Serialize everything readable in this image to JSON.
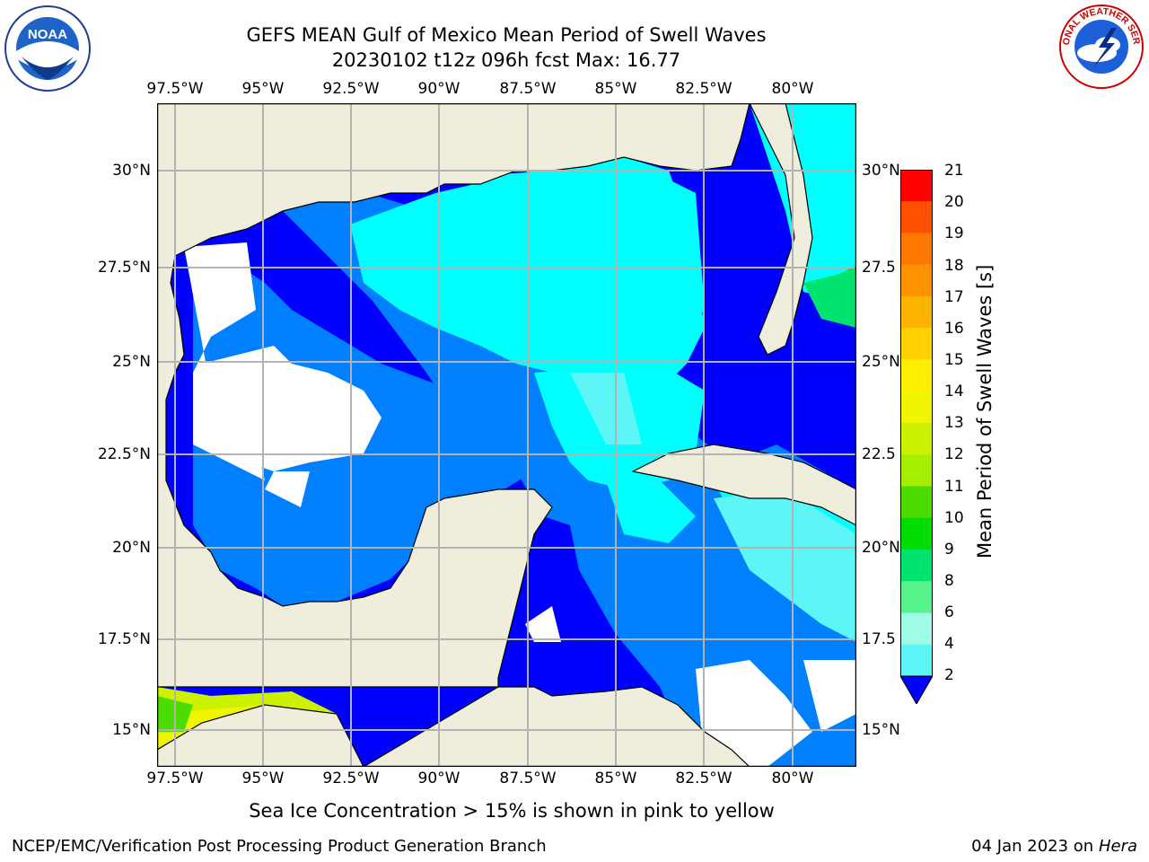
{
  "header": {
    "title_line1": "GEFS MEAN Gulf of Mexico Mean Period of Swell Waves",
    "title_line2": "20230102 t12z 096h fcst   Max: 16.77"
  },
  "logos": {
    "left": {
      "name": "noaa-logo",
      "text": "NOAA"
    },
    "right": {
      "name": "nws-logo",
      "text": "NATIONAL WEATHER SERVICE"
    }
  },
  "map": {
    "lon_labels": [
      "97.5°W",
      "95°W",
      "92.5°W",
      "90°W",
      "87.5°W",
      "85°W",
      "82.5°W",
      "80°W"
    ],
    "lat_labels_left": [
      "30°N",
      "27.5°N",
      "25°N",
      "22.5°N",
      "20°N",
      "17.5°N",
      "15°N"
    ],
    "lat_labels_right": [
      "30°N",
      "27.5",
      "25°N",
      "22.5",
      "20°N",
      "17.5",
      "15°N"
    ],
    "colors": {
      "land": "#efeddc",
      "grid": "#b3b3b3"
    }
  },
  "colorbar": {
    "label": "Mean Period of Swell Waves [s]",
    "ticks": [
      "21",
      "20",
      "19",
      "18",
      "17",
      "16",
      "15",
      "14",
      "13",
      "12",
      "11",
      "10",
      "9",
      "8",
      "6",
      "4",
      "2"
    ],
    "colors_top_to_bottom": [
      "#ff0000",
      "#ff2c00",
      "#ff5000",
      "#ff7800",
      "#ff9400",
      "#ffb400",
      "#ffd200",
      "#ffef00",
      "#f0f500",
      "#ccf200",
      "#a5ee00",
      "#4bdc00",
      "#00dd00",
      "#00e36e",
      "#57f48c",
      "#9ffbe3",
      "#5df5f5",
      "#00ffff",
      "#00c8ff",
      "#0080ff",
      "#0000ff"
    ]
  },
  "caption": "Sea Ice Concentration > 15% is shown in pink to yellow",
  "footer": {
    "left": "NCEP/EMC/Verification Post Processing Product Generation Branch",
    "right_date": "04 Jan 2023 on ",
    "right_host": "Hera"
  }
}
